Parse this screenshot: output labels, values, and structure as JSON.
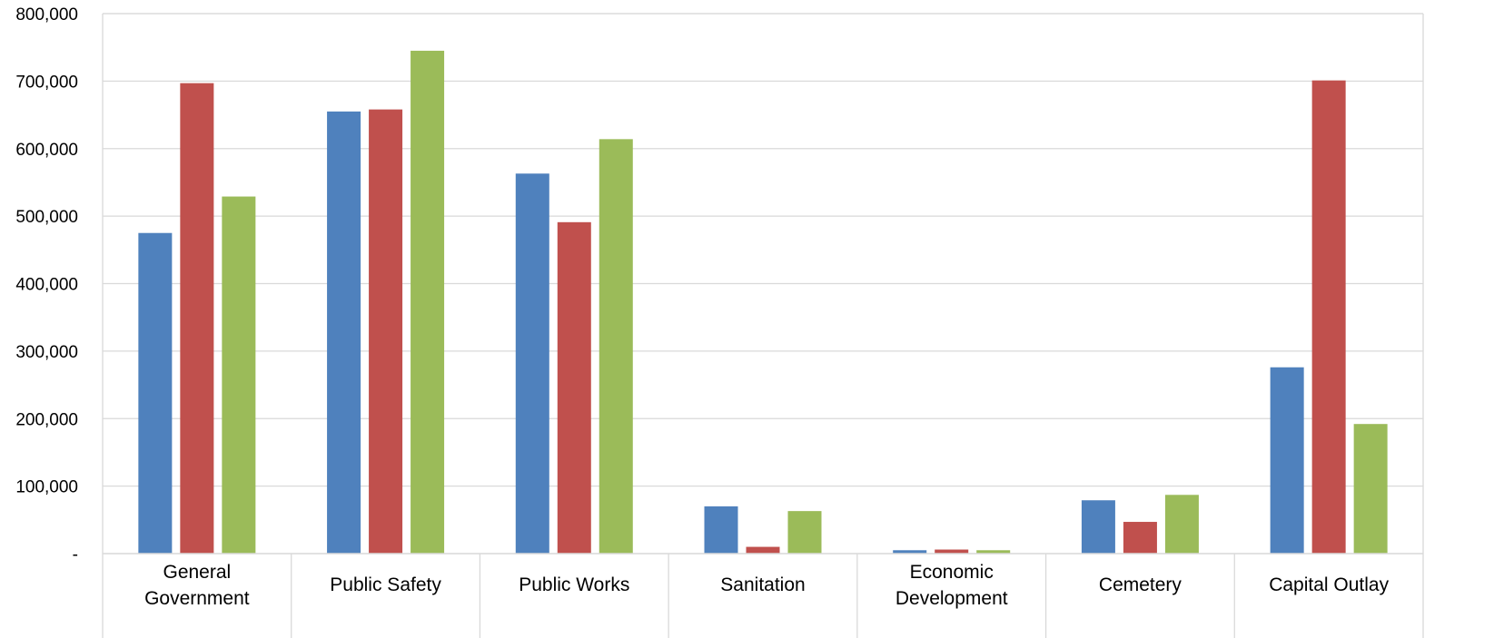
{
  "chart_data": {
    "type": "bar",
    "title": "",
    "xlabel": "",
    "ylabel": "",
    "ylim": [
      0,
      800000
    ],
    "y_ticks": [
      {
        "value": 0,
        "label": "-"
      },
      {
        "value": 100000,
        "label": "100,000"
      },
      {
        "value": 200000,
        "label": "200,000"
      },
      {
        "value": 300000,
        "label": "300,000"
      },
      {
        "value": 400000,
        "label": "400,000"
      },
      {
        "value": 500000,
        "label": "500,000"
      },
      {
        "value": 600000,
        "label": "600,000"
      },
      {
        "value": 700000,
        "label": "700,000"
      },
      {
        "value": 800000,
        "label": "800,000"
      }
    ],
    "categories": [
      [
        "General",
        "Government"
      ],
      [
        "Public Safety"
      ],
      [
        "Public Works"
      ],
      [
        "Sanitation"
      ],
      [
        "Economic",
        "Development"
      ],
      [
        "Cemetery"
      ],
      [
        "Capital Outlay"
      ]
    ],
    "series": [
      {
        "color": "#4f81bd",
        "values": [
          475000,
          655000,
          563000,
          70000,
          5000,
          79000,
          276000
        ]
      },
      {
        "color": "#c0504d",
        "values": [
          697000,
          658000,
          491000,
          10000,
          6000,
          47000,
          701000
        ]
      },
      {
        "color": "#9bbb59",
        "values": [
          529000,
          745000,
          614000,
          63000,
          5000,
          87000,
          192000
        ]
      }
    ],
    "grid": true,
    "legend": "none"
  }
}
